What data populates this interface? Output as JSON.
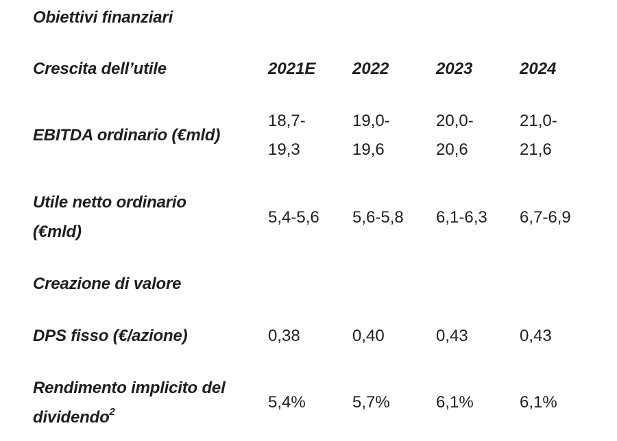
{
  "title": "Obiettivi finanziari",
  "header": {
    "label": "Crescita dell’utile",
    "years": [
      "2021E",
      "2022",
      "2023",
      "2024"
    ]
  },
  "ebitda": {
    "label": "EBITDA ordinario (€mld)",
    "values": [
      {
        "line1": "18,7-",
        "line2": "19,3"
      },
      {
        "line1": "19,0-",
        "line2": "19,6"
      },
      {
        "line1": "20,0-",
        "line2": "20,6"
      },
      {
        "line1": "21,0-",
        "line2": "21,6"
      }
    ]
  },
  "utile": {
    "label_line1": "Utile netto ordinario",
    "label_line2": "(€mld)",
    "values": [
      "5,4-5,6",
      "5,6-5,8",
      "6,1-6,3",
      "6,7-6,9"
    ]
  },
  "creazione": {
    "label": "Creazione di valore"
  },
  "dps": {
    "label": "DPS fisso (€/azione)",
    "values": [
      "0,38",
      "0,40",
      "0,43",
      "0,43"
    ]
  },
  "rendimento": {
    "label_line1": "Rendimento implicito del",
    "label_line2": "dividendo",
    "footnote": "2",
    "values": [
      "5,4%",
      "5,7%",
      "6,1%",
      "6,1%"
    ]
  }
}
